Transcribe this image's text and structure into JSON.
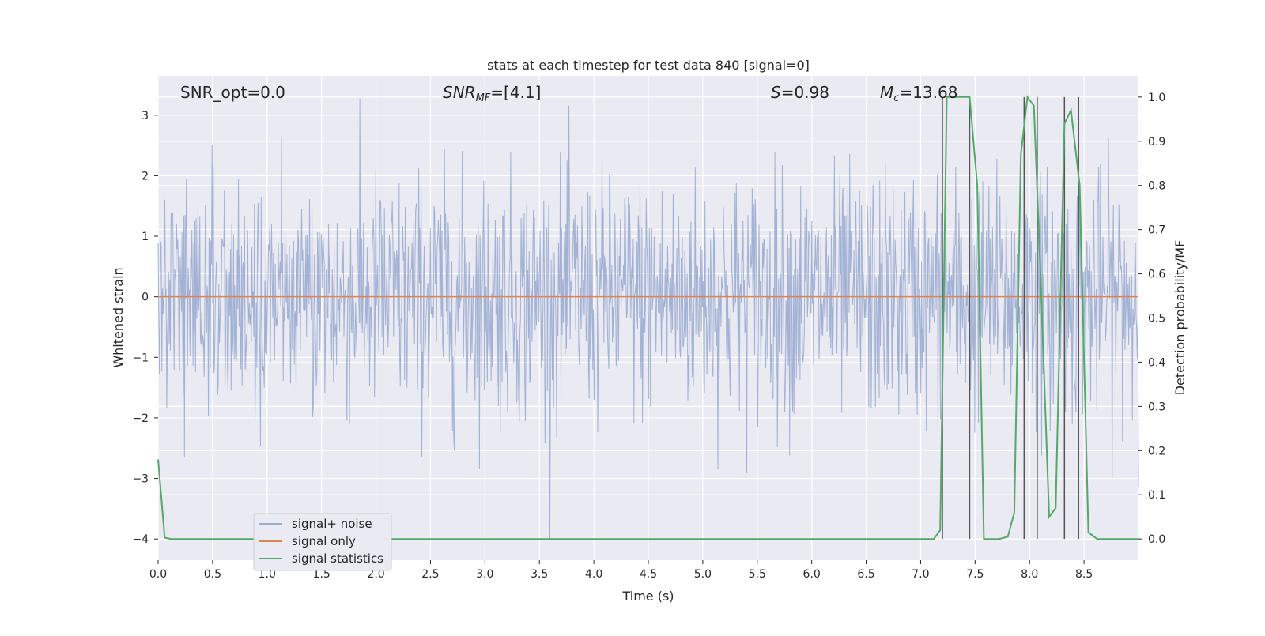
{
  "chart_data": {
    "type": "line",
    "title": "stats at each timestep for test data 840 [signal=0]",
    "xlabel": "Time (s)",
    "ylabel": "Whitened strain",
    "y2label": "Detection probability/MF",
    "xlim": [
      0.0,
      9.0
    ],
    "ylim": [
      -4.35,
      3.65
    ],
    "y2lim": [
      -0.048,
      1.048
    ],
    "xticks": [
      "0.0",
      "0.5",
      "1.0",
      "1.5",
      "2.0",
      "2.5",
      "3.0",
      "3.5",
      "4.0",
      "4.5",
      "5.0",
      "5.5",
      "6.0",
      "6.5",
      "7.0",
      "7.5",
      "8.0",
      "8.5"
    ],
    "yticks": [
      "−4",
      "−3",
      "−2",
      "−1",
      "0",
      "1",
      "2",
      "3"
    ],
    "y2ticks": [
      "0.0",
      "0.1",
      "0.2",
      "0.3",
      "0.4",
      "0.5",
      "0.6",
      "0.7",
      "0.8",
      "0.9",
      "1.0"
    ],
    "grid": true,
    "legend_position": "lower-left",
    "annotations": {
      "snr_opt": "SNR_opt=0.0",
      "snr_mf_main": "SNR",
      "snr_mf_sub": "MF",
      "snr_mf_val": "=[4.1]",
      "s_main": "S",
      "s_val": "=0.98",
      "mc_main": "M",
      "mc_sub": "c",
      "mc_val": "=13.68"
    },
    "series": [
      {
        "name": "signal+ noise",
        "color": "#9aabd0",
        "noise_amplitude": [
          -4.0,
          3.3
        ]
      },
      {
        "name": "signal only",
        "color": "#dd8452",
        "x": [
          0.0,
          9.0
        ],
        "y": [
          0,
          0
        ]
      },
      {
        "name": "signal statistics",
        "color": "#55a868",
        "axis": "right",
        "x": [
          0.0,
          0.06,
          0.12,
          0.2,
          0.5,
          1.0,
          2.0,
          3.0,
          4.0,
          5.0,
          6.0,
          7.0,
          7.12,
          7.18,
          7.24,
          7.32,
          7.45,
          7.52,
          7.58,
          7.72,
          7.8,
          7.86,
          7.92,
          7.98,
          8.04,
          8.1,
          8.18,
          8.24,
          8.32,
          8.38,
          8.46,
          8.54,
          8.62,
          9.0
        ],
        "y": [
          0.18,
          0.003,
          0.0,
          0.0,
          0.0,
          0.0,
          0.0,
          0.0,
          0.0,
          0.0,
          0.0,
          0.0,
          0.0,
          0.02,
          1.0,
          1.0,
          1.0,
          0.8,
          0.0,
          0.0,
          0.005,
          0.06,
          0.87,
          1.0,
          0.98,
          0.6,
          0.05,
          0.07,
          0.94,
          0.97,
          0.8,
          0.015,
          0.0,
          0.0
        ]
      }
    ],
    "vlines": [
      7.2,
      7.45,
      7.95,
      8.07,
      8.32,
      8.45
    ]
  }
}
